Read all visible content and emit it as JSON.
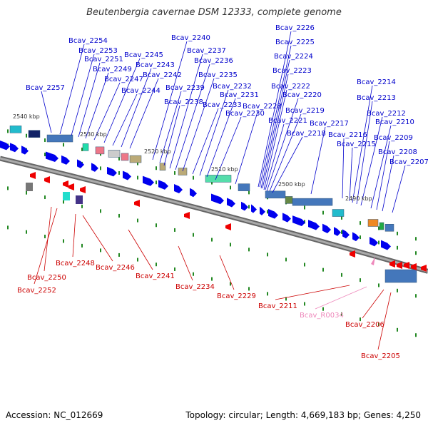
{
  "title": "Beutenbergia cavernae DSM 12333, complete genome",
  "footer": {
    "accession": "Accession: NC_012669",
    "summary": "Topology: circular; Length: 4,669,183 bp; Genes: 4,250"
  },
  "colors": {
    "forward_label": "#0000cc",
    "reverse_label": "#cc0000",
    "rna_label": "#ee88bb",
    "forward_cds": "#0000ee",
    "reverse_cds": "#ee0000",
    "backbone": "#888888",
    "tick_minor": "#228822",
    "tick_major": "#444444"
  },
  "scale": {
    "direction": "decreasing left to right",
    "ticks": [
      "2540 kbp",
      "2530 kbp",
      "2520 kbp",
      "2510 kbp",
      "2500 kbp",
      "2490 kbp"
    ]
  },
  "forward_genes": [
    "Bcav_2257",
    "Bcav_2254",
    "Bcav_2253",
    "Bcav_2251",
    "Bcav_2249",
    "Bcav_2247",
    "Bcav_2245",
    "Bcav_2244",
    "Bcav_2243",
    "Bcav_2242",
    "Bcav_2240",
    "Bcav_2239",
    "Bcav_2238",
    "Bcav_2237",
    "Bcav_2236",
    "Bcav_2235",
    "Bcav_2233",
    "Bcav_2232",
    "Bcav_2231",
    "Bcav_2230",
    "Bcav_2228",
    "Bcav_2226",
    "Bcav_2225",
    "Bcav_2224",
    "Bcav_2223",
    "Bcav_2222",
    "Bcav_2221",
    "Bcav_2220",
    "Bcav_2219",
    "Bcav_2218",
    "Bcav_2217",
    "Bcav_2216",
    "Bcav_2215",
    "Bcav_2214",
    "Bcav_2213",
    "Bcav_2212",
    "Bcav_2210",
    "Bcav_2209",
    "Bcav_2208",
    "Bcav_2207"
  ],
  "reverse_genes": [
    "Bcav_2252",
    "Bcav_2250",
    "Bcav_2248",
    "Bcav_2246",
    "Bcav_2241",
    "Bcav_2234",
    "Bcav_2229",
    "Bcav_2211",
    "Bcav_2206",
    "Bcav_2205"
  ],
  "rna_genes": [
    "Bcav_R0034"
  ]
}
